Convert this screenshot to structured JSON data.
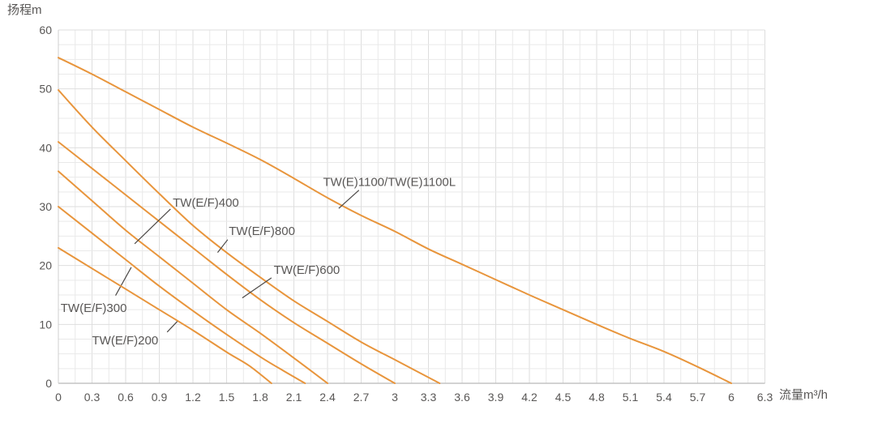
{
  "chart_data": {
    "type": "line",
    "title": "",
    "ylabel": "扬程m",
    "xlabel": "流量m³/h",
    "xlim": [
      0,
      6.3
    ],
    "ylim": [
      0,
      60
    ],
    "x_tick_step": 0.3,
    "y_tick_step": 10,
    "x_minor_step": 0.15,
    "y_minor_step": 2.5,
    "grid": true,
    "legend_position": "inline-labels",
    "x_tick_labels": [
      "0",
      "0.3",
      "0.6",
      "0.9",
      "1.2",
      "1.5",
      "1.8",
      "2.1",
      "2.4",
      "2.7",
      "3",
      "3.3",
      "3.6",
      "3.9",
      "4.2",
      "4.5",
      "4.8",
      "5.1",
      "5.4",
      "5.7",
      "6",
      "6.3"
    ],
    "y_tick_labels": [
      "0",
      "10",
      "20",
      "30",
      "40",
      "50",
      "60"
    ],
    "colors": {
      "curve": "#E8953C",
      "label_text": "#595756",
      "grid_minor": "#e9e9e9",
      "grid_major": "#dedede",
      "axis_bottom": "#b9b9b9",
      "axis_left": "#cfcfcf",
      "leader": "#4c4947"
    },
    "series": [
      {
        "name": "TW(E)1100/TW(E)1100L",
        "x": [
          0,
          0.3,
          0.6,
          0.9,
          1.2,
          1.5,
          1.8,
          2.1,
          2.4,
          2.7,
          3.0,
          3.3,
          3.6,
          3.9,
          4.2,
          4.5,
          4.8,
          5.1,
          5.4,
          5.7,
          6.0
        ],
        "y": [
          55.3,
          52.5,
          49.5,
          46.5,
          43.5,
          40.8,
          38.0,
          34.8,
          31.5,
          28.5,
          25.8,
          22.8,
          20.2,
          17.6,
          15.0,
          12.5,
          10.0,
          7.6,
          5.4,
          2.8,
          0
        ],
        "label_pos": [
          2.36,
          34.2
        ],
        "leader": [
          [
            2.68,
            32.8
          ],
          [
            2.5,
            29.7
          ]
        ]
      },
      {
        "name": "TW(E/F)800",
        "x": [
          0,
          0.3,
          0.6,
          0.9,
          1.2,
          1.5,
          1.8,
          2.1,
          2.4,
          2.7,
          3.0,
          3.2,
          3.4
        ],
        "y": [
          49.8,
          43.5,
          37.8,
          32.2,
          26.8,
          22.2,
          18.0,
          14.0,
          10.5,
          7.0,
          4.0,
          2.0,
          0
        ],
        "label_pos": [
          1.52,
          25.9
        ],
        "leader": [
          [
            1.51,
            24.4
          ],
          [
            1.42,
            22.2
          ]
        ]
      },
      {
        "name": "TW(E/F)600",
        "x": [
          0,
          0.3,
          0.6,
          0.9,
          1.2,
          1.5,
          1.8,
          2.1,
          2.4,
          2.7,
          3.0
        ],
        "y": [
          41.0,
          36.5,
          32.0,
          27.5,
          23.0,
          18.5,
          14.2,
          10.3,
          6.8,
          3.3,
          0
        ],
        "label_pos": [
          1.92,
          19.3
        ],
        "leader": [
          [
            1.9,
            17.9
          ],
          [
            1.64,
            14.5
          ]
        ]
      },
      {
        "name": "TW(E/F)400",
        "x": [
          0,
          0.3,
          0.6,
          0.9,
          1.2,
          1.5,
          1.8,
          2.1,
          2.4
        ],
        "y": [
          36.0,
          31.0,
          26.0,
          21.5,
          17.0,
          12.5,
          8.5,
          4.3,
          0
        ],
        "label_pos": [
          1.02,
          30.7
        ],
        "leader": [
          [
            1.0,
            29.6
          ],
          [
            0.68,
            23.7
          ]
        ]
      },
      {
        "name": "TW(E/F)300",
        "x": [
          0,
          0.3,
          0.6,
          0.9,
          1.2,
          1.5,
          1.8,
          2.0,
          2.2
        ],
        "y": [
          30.0,
          25.5,
          21.0,
          16.5,
          12.3,
          8.3,
          4.5,
          2.2,
          0
        ],
        "label_pos": [
          0.02,
          12.8
        ],
        "leader": [
          [
            0.51,
            14.9
          ],
          [
            0.65,
            19.7
          ]
        ]
      },
      {
        "name": "TW(E/F)200",
        "x": [
          0,
          0.3,
          0.6,
          0.9,
          1.2,
          1.5,
          1.7,
          1.9
        ],
        "y": [
          23.0,
          19.5,
          16.0,
          12.5,
          9.0,
          5.3,
          3.0,
          0
        ],
        "label_pos": [
          0.3,
          7.3
        ],
        "leader": [
          [
            0.97,
            8.7
          ],
          [
            1.06,
            10.5
          ]
        ]
      }
    ]
  }
}
